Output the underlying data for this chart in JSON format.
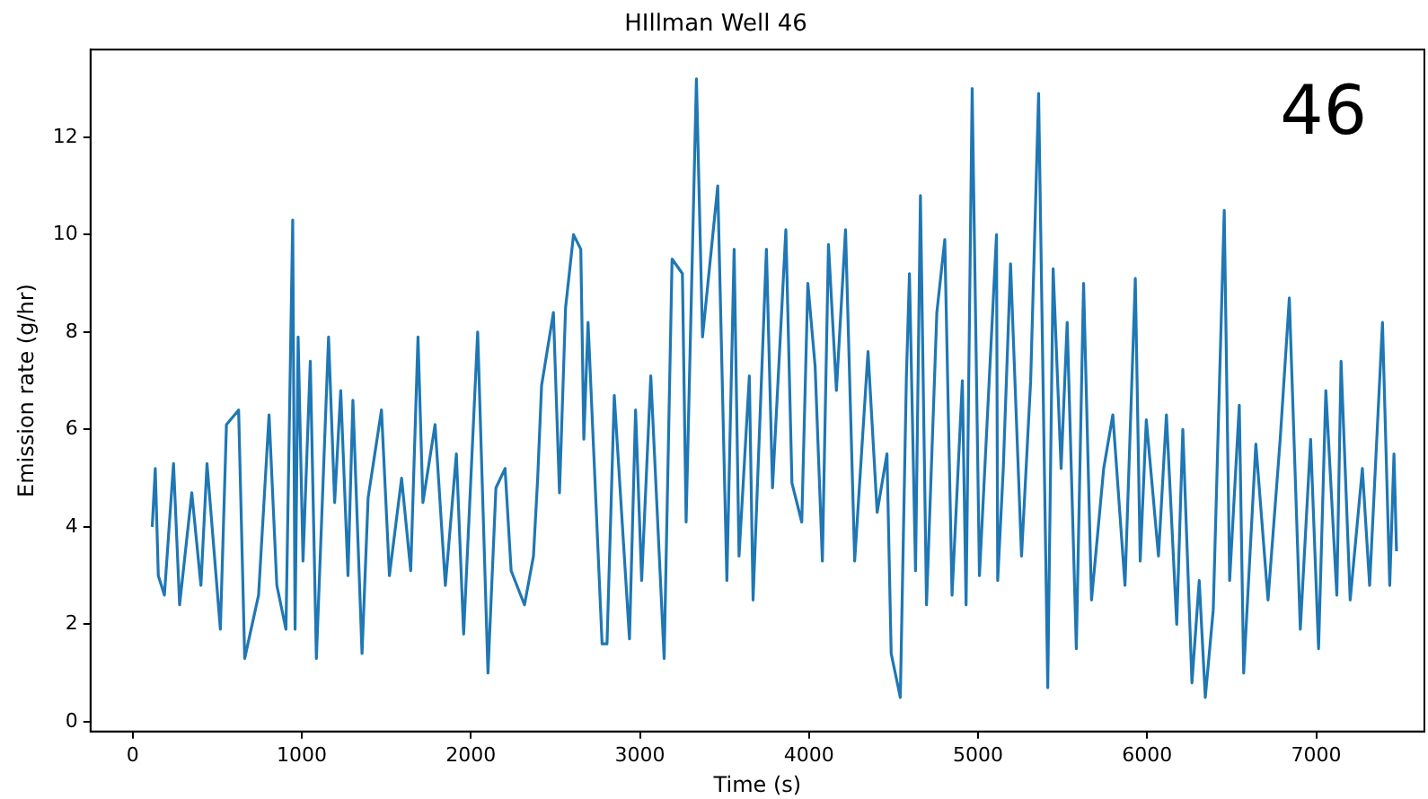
{
  "chart_data": {
    "type": "line",
    "title": "HIllman Well 46",
    "xlabel": "Time (s)",
    "ylabel": "Emission rate (g/hr)",
    "annotations": [
      "46"
    ],
    "xlim": [
      -250,
      7640
    ],
    "xticks": [
      0,
      1000,
      2000,
      3000,
      4000,
      5000,
      6000,
      7000
    ],
    "ylim": [
      -0.2,
      13.8
    ],
    "yticks": [
      0,
      2,
      4,
      6,
      8,
      10,
      12
    ],
    "grid": false,
    "legend": false,
    "marker": "none",
    "line_style": "solid",
    "series": [
      {
        "color": "#1f77b4",
        "x": [
          115,
          133,
          151,
          187,
          241,
          277,
          349,
          403,
          439,
          518,
          554,
          626,
          662,
          744,
          806,
          852,
          906,
          946,
          960,
          978,
          1007,
          1050,
          1086,
          1158,
          1194,
          1230,
          1273,
          1302,
          1356,
          1392,
          1471,
          1518,
          1590,
          1644,
          1687,
          1716,
          1788,
          1849,
          1914,
          1957,
          2040,
          2101,
          2148,
          2202,
          2238,
          2317,
          2370,
          2395,
          2418,
          2488,
          2524,
          2560,
          2607,
          2650,
          2668,
          2693,
          2776,
          2805,
          2848,
          2938,
          2974,
          3010,
          3064,
          3143,
          3190,
          3251,
          3273,
          3334,
          3370,
          3460,
          3514,
          3557,
          3586,
          3647,
          3669,
          3748,
          3784,
          3863,
          3899,
          3957,
          3993,
          4036,
          4079,
          4115,
          4162,
          4216,
          4270,
          4349,
          4403,
          4461,
          4486,
          4540,
          4576,
          4594,
          4630,
          4659,
          4695,
          4756,
          4803,
          4846,
          4907,
          4929,
          4965,
          5008,
          5109,
          5116,
          5149,
          5192,
          5257,
          5311,
          5358,
          5412,
          5444,
          5491,
          5527,
          5581,
          5624,
          5671,
          5743,
          5797,
          5869,
          5930,
          5959,
          5995,
          6067,
          6114,
          6175,
          6211,
          6265,
          6308,
          6344,
          6391,
          6456,
          6488,
          6545,
          6571,
          6643,
          6715,
          6787,
          6841,
          6906,
          6967,
          7014,
          7057,
          7122,
          7147,
          7201,
          7273,
          7316,
          7392,
          7435,
          7460,
          7475
        ],
        "values": [
          4.0,
          5.2,
          3.0,
          2.6,
          5.3,
          2.4,
          4.7,
          2.8,
          5.3,
          1.9,
          6.1,
          6.4,
          1.3,
          2.6,
          6.3,
          2.8,
          1.9,
          10.3,
          1.9,
          7.9,
          3.3,
          7.4,
          1.3,
          7.9,
          4.5,
          6.8,
          3.0,
          6.6,
          1.4,
          4.6,
          6.4,
          3.0,
          5.0,
          3.1,
          7.9,
          4.5,
          6.1,
          2.8,
          5.5,
          1.8,
          8.0,
          1.0,
          4.8,
          5.2,
          3.1,
          2.4,
          3.4,
          5.0,
          6.9,
          8.4,
          4.7,
          8.5,
          10.0,
          9.7,
          5.8,
          8.2,
          1.6,
          1.6,
          6.7,
          1.7,
          6.4,
          2.9,
          7.1,
          1.3,
          9.5,
          9.2,
          4.1,
          13.2,
          7.9,
          11.0,
          2.9,
          9.7,
          3.4,
          7.1,
          2.5,
          9.7,
          4.8,
          10.1,
          4.9,
          4.1,
          9.0,
          7.3,
          3.3,
          9.8,
          6.8,
          10.1,
          3.3,
          7.6,
          4.3,
          5.5,
          1.4,
          0.5,
          7.1,
          9.2,
          3.1,
          10.8,
          2.4,
          8.4,
          9.9,
          2.6,
          7.0,
          2.4,
          13.0,
          3.0,
          10.0,
          2.9,
          5.2,
          9.4,
          3.4,
          7.0,
          12.9,
          0.7,
          9.3,
          5.2,
          8.2,
          1.5,
          9.0,
          2.5,
          5.2,
          6.3,
          2.8,
          9.1,
          3.3,
          6.2,
          3.4,
          6.3,
          2.0,
          6.0,
          0.8,
          2.9,
          0.5,
          2.3,
          10.5,
          2.9,
          6.5,
          1.0,
          5.7,
          2.5,
          5.8,
          8.7,
          1.9,
          5.8,
          1.5,
          6.8,
          2.6,
          7.4,
          2.5,
          5.2,
          2.8,
          8.2,
          2.8,
          5.5,
          3.5
        ]
      }
    ]
  }
}
